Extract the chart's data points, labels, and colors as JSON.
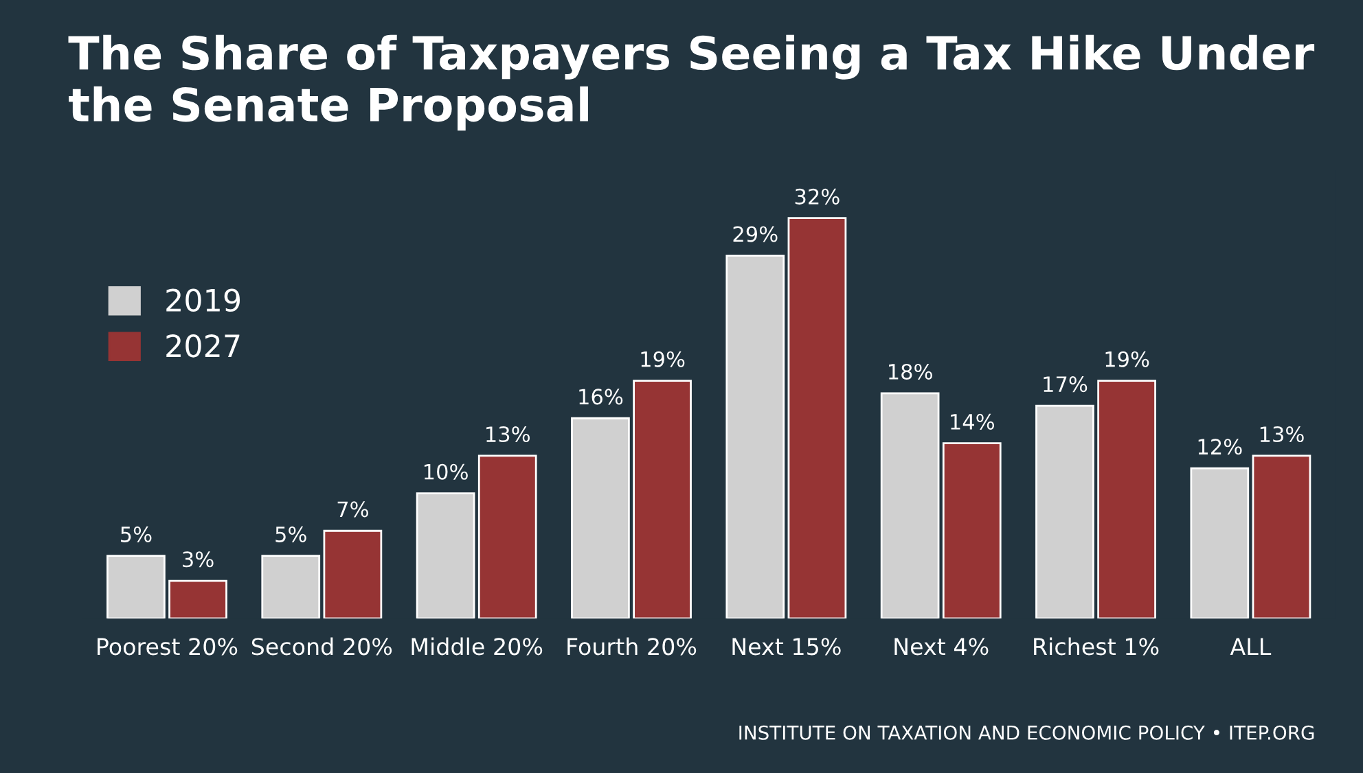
{
  "chart_data": {
    "type": "bar",
    "title": "The Share of Taxpayers Seeing a Tax Hike Under the Senate Proposal",
    "categories": [
      "Poorest 20%",
      "Second 20%",
      "Middle 20%",
      "Fourth 20%",
      "Next 15%",
      "Next 4%",
      "Richest 1%",
      "ALL"
    ],
    "series": [
      {
        "name": "2019",
        "color": "#d0d0d0",
        "values": [
          5,
          5,
          10,
          16,
          29,
          18,
          17,
          12
        ],
        "value_labels": [
          "5%",
          "5%",
          "10%",
          "16%",
          "29%",
          "18%",
          "17%",
          "12%"
        ]
      },
      {
        "name": "2027",
        "color": "#963434",
        "values": [
          3,
          7,
          13,
          19,
          32,
          14,
          19,
          13
        ],
        "value_labels": [
          "3%",
          "7%",
          "13%",
          "19%",
          "32%",
          "14%",
          "19%",
          "13%"
        ]
      }
    ],
    "legend": "top left",
    "grid": false,
    "annotations": [
      "INSTITUTE ON TAXATION AND ECONOMIC POLICY • ITEP.ORG"
    ]
  }
}
